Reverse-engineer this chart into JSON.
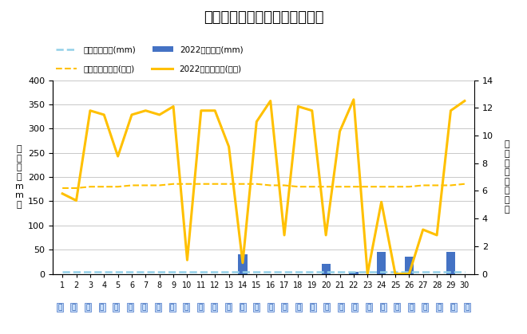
{
  "title": "４月降水量・日照時間（日別）",
  "days": [
    1,
    2,
    3,
    4,
    5,
    6,
    7,
    8,
    9,
    10,
    11,
    12,
    13,
    14,
    15,
    16,
    17,
    18,
    19,
    20,
    21,
    22,
    23,
    24,
    25,
    26,
    27,
    28,
    29,
    30
  ],
  "precip_avg": [
    5,
    5,
    5,
    5,
    5,
    5,
    5,
    5,
    5,
    5,
    5,
    5,
    5,
    5,
    5,
    5,
    5,
    5,
    5,
    5,
    5,
    5,
    5,
    5,
    5,
    5,
    5,
    5,
    5,
    5
  ],
  "precip_2022": [
    0,
    0,
    0,
    0,
    0,
    0,
    0,
    0,
    0,
    0,
    0,
    0,
    0,
    40,
    0,
    0,
    0,
    0,
    0,
    20,
    0,
    5,
    0,
    45,
    0,
    35,
    0,
    0,
    45,
    0
  ],
  "sunshine_avg": [
    6.2,
    6.2,
    6.3,
    6.3,
    6.3,
    6.4,
    6.4,
    6.4,
    6.5,
    6.5,
    6.5,
    6.5,
    6.5,
    6.5,
    6.5,
    6.4,
    6.4,
    6.3,
    6.3,
    6.3,
    6.3,
    6.3,
    6.3,
    6.3,
    6.3,
    6.3,
    6.4,
    6.4,
    6.4,
    6.5
  ],
  "sunshine_2022": [
    5.8,
    5.3,
    11.8,
    11.5,
    8.5,
    11.5,
    11.8,
    11.5,
    12.1,
    1.0,
    11.8,
    11.8,
    9.2,
    0.8,
    11.0,
    12.5,
    2.8,
    12.1,
    11.8,
    2.8,
    10.3,
    12.6,
    0.0,
    5.2,
    0.0,
    0.0,
    3.2,
    2.8,
    11.8,
    12.5
  ],
  "legend_precip_avg": "降水量平年値(mm)",
  "legend_precip_2022": "2022年降水量(mm)",
  "legend_sunshine_avg": "日照時間平年値(時間)",
  "legend_sunshine_2022": "2022年日照時間(時間)",
  "ylabel_left": "降\n水\n量\n（\nm\nm\n）",
  "ylabel_right": "日\n照\n時\n間\n（\n時\n間\n）",
  "ylim_left": [
    0,
    400
  ],
  "ylim_right": [
    0,
    14
  ],
  "yticks_left": [
    0,
    50,
    100,
    150,
    200,
    250,
    300,
    350,
    400
  ],
  "yticks_right": [
    0,
    2,
    4,
    6,
    8,
    10,
    12,
    14
  ],
  "bar_color": "#4472C4",
  "precip_avg_color": "#92D0E8",
  "sunshine_avg_color": "#FFC000",
  "sunshine_2022_color": "#FFC000",
  "background_color": "#FFFFFF",
  "grid_color": "#C8C8C8",
  "title_fontsize": 13,
  "axis_fontsize": 8,
  "tick_fontsize": 8
}
